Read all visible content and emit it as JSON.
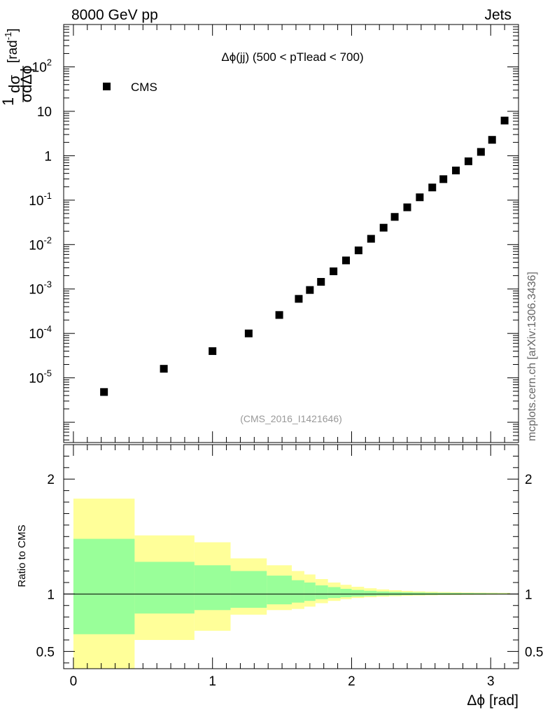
{
  "header": {
    "left": "8000 GeV pp",
    "right": "Jets"
  },
  "side_label": "mcplots.cern.ch [arXiv:1306.3436]",
  "chart_data": [
    {
      "type": "scatter",
      "title": "Δϕ(jj) (500 < pTlead < 700)",
      "ylabel_parts": {
        "lead": "1",
        "numer": "dσ",
        "denom": "σdΔϕ",
        "unit": "[rad",
        "exp": "-1",
        "close": "]"
      },
      "watermark": "(CMS_2016_I1421646)",
      "legend": "CMS",
      "yscale": "log",
      "xlim": [
        -0.07,
        3.2
      ],
      "ylim": [
        3.5e-07,
        900
      ],
      "yticks": [
        {
          "value": 1e-05,
          "base": "10",
          "exp": "-5"
        },
        {
          "value": 0.0001,
          "base": "10",
          "exp": "-4"
        },
        {
          "value": 0.001,
          "base": "10",
          "exp": "-3"
        },
        {
          "value": 0.01,
          "base": "10",
          "exp": "-2"
        },
        {
          "value": 0.1,
          "base": "10",
          "exp": "-1"
        },
        {
          "value": 1,
          "base": "1",
          "exp": ""
        },
        {
          "value": 10,
          "base": "10",
          "exp": ""
        },
        {
          "value": 100,
          "base": "10",
          "exp": "2"
        }
      ],
      "series": [
        {
          "name": "CMS",
          "x": [
            0.22,
            0.65,
            1.0,
            1.26,
            1.48,
            1.62,
            1.7,
            1.78,
            1.87,
            1.96,
            2.05,
            2.14,
            2.23,
            2.31,
            2.4,
            2.49,
            2.58,
            2.66,
            2.75,
            2.84,
            2.93,
            3.01,
            3.1
          ],
          "y": [
            4.8e-06,
            1.6e-05,
            4e-05,
            0.0001,
            0.00026,
            0.0006,
            0.00095,
            0.00145,
            0.0025,
            0.0044,
            0.0074,
            0.0135,
            0.024,
            0.042,
            0.069,
            0.116,
            0.193,
            0.297,
            0.466,
            0.75,
            1.22,
            2.28,
            6.2
          ]
        }
      ]
    },
    {
      "type": "area",
      "ylabel": "Ratio to CMS",
      "xlabel": "Δϕ [rad]",
      "xlim": [
        -0.07,
        3.2
      ],
      "ylim": [
        0.35,
        2.3
      ],
      "xticks": [
        0,
        1,
        2,
        3
      ],
      "yticks": [
        0.5,
        1,
        2
      ],
      "ytick_labels": [
        "0.5",
        "1",
        "2"
      ],
      "reference": 1,
      "bands": [
        {
          "name": "outer",
          "color": "#ffff99",
          "edges": [
            0.0,
            0.44,
            0.87,
            1.13,
            1.39,
            1.57,
            1.66,
            1.74,
            1.83,
            1.92,
            2.0,
            2.09,
            2.18,
            2.27,
            2.36,
            2.44,
            2.53,
            2.62,
            2.71,
            2.79,
            2.88,
            2.97,
            3.05,
            3.14
          ],
          "upper": [
            1.83,
            1.51,
            1.45,
            1.31,
            1.25,
            1.2,
            1.17,
            1.13,
            1.1,
            1.08,
            1.063,
            1.05,
            1.04,
            1.033,
            1.027,
            1.023,
            1.02,
            1.017,
            1.015,
            1.013,
            1.012,
            1.011,
            1.01
          ],
          "lower": [
            0.1,
            0.6,
            0.68,
            0.82,
            0.86,
            0.87,
            0.89,
            0.92,
            0.94,
            0.955,
            0.965,
            0.972,
            0.977,
            0.981,
            0.984,
            0.986,
            0.988,
            0.99,
            0.991,
            0.992,
            0.993,
            0.994,
            0.995
          ]
        },
        {
          "name": "inner",
          "color": "#99ff99",
          "edges": [
            0.0,
            0.44,
            0.87,
            1.13,
            1.39,
            1.57,
            1.66,
            1.74,
            1.83,
            1.92,
            2.0,
            2.09,
            2.18,
            2.27,
            2.36,
            2.44,
            2.53,
            2.62,
            2.71,
            2.79,
            2.88,
            2.97,
            3.05,
            3.14
          ],
          "upper": [
            1.48,
            1.28,
            1.25,
            1.2,
            1.16,
            1.12,
            1.1,
            1.075,
            1.06,
            1.045,
            1.035,
            1.028,
            1.022,
            1.018,
            1.015,
            1.013,
            1.011,
            1.01,
            1.009,
            1.008,
            1.007,
            1.006,
            1.005
          ],
          "lower": [
            0.65,
            0.83,
            0.86,
            0.88,
            0.91,
            0.925,
            0.94,
            0.955,
            0.965,
            0.972,
            0.978,
            0.982,
            0.986,
            0.988,
            0.99,
            0.991,
            0.992,
            0.993,
            0.994,
            0.995,
            0.995,
            0.996,
            0.996
          ]
        }
      ]
    }
  ]
}
